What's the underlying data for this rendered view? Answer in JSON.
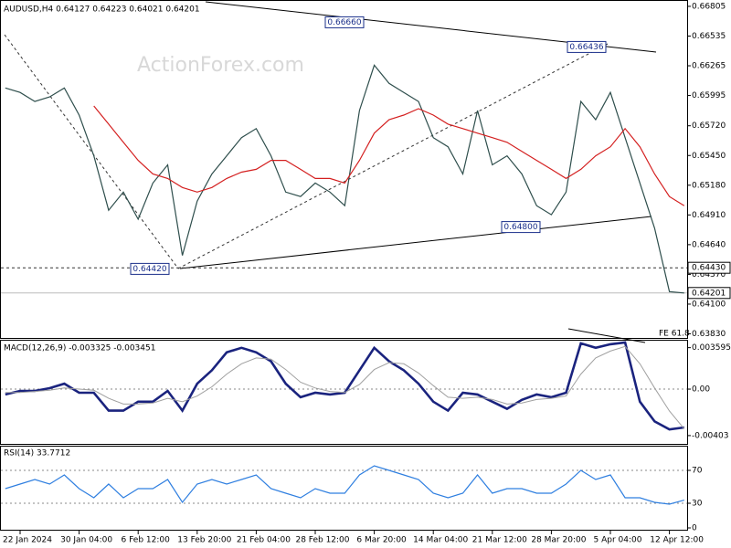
{
  "chart_data": [
    {
      "type": "line",
      "title": "AUDUSD,H4 0.64127 0.64223 0.64021 0.64201",
      "watermark": "ActionForex.com",
      "fib_label": "FE 61.8",
      "ylim": [
        0.63801,
        0.66846
      ],
      "yticks": [
        0.66805,
        0.66535,
        0.66265,
        0.65995,
        {
          "value": 0.6572,
          "label": "0.65720"
        },
        {
          "value": 0.6545,
          "label": "0.65450"
        },
        {
          "value": 0.6518,
          "label": "0.65180"
        },
        {
          "value": 0.6491,
          "label": "0.64910"
        },
        {
          "value": 0.6464,
          "label": "0.64640"
        },
        {
          "value": 0.6437,
          "label": "0.64370"
        },
        {
          "value": 0.641,
          "label": "0.64100"
        },
        {
          "value": 0.6383,
          "label": "0.63830"
        }
      ],
      "levels": [
        {
          "value": 0.6443,
          "label": "0.64430"
        },
        {
          "value": 0.64201,
          "label": "0.64201"
        }
      ],
      "annotations": [
        {
          "value": 0.6666,
          "label": "0.66660"
        },
        {
          "value": 0.66436,
          "label": "0.66436"
        },
        {
          "value": 0.648,
          "label": "0.64800"
        },
        {
          "value": 0.6442,
          "label": "0.64420"
        }
      ],
      "series": [
        {
          "color": "#2e4e4c",
          "values": [
            0.66064,
            0.66023,
            0.65941,
            0.65982,
            0.66064,
            0.65817,
            0.65447,
            0.64953,
            0.65118,
            0.64871,
            0.652,
            0.65365,
            0.64542,
            0.65036,
            0.65282,
            0.65447,
            0.65612,
            0.65694,
            0.65447,
            0.65118,
            0.65077,
            0.652,
            0.65118,
            0.64994,
            0.65859,
            0.6627,
            0.66105,
            0.66023,
            0.65941,
            0.65612,
            0.65529,
            0.65282,
            0.65859,
            0.65365,
            0.65447,
            0.65282,
            0.64994,
            0.64912,
            0.65118,
            0.65941,
            0.65776,
            0.66023,
            0.65612,
            0.652,
            0.64789,
            0.64213,
            0.64201
          ]
        },
        {
          "color": "#d42020",
          "values": [
            null,
            null,
            null,
            null,
            null,
            null,
            0.659,
            0.65735,
            0.6557,
            0.65406,
            0.65282,
            0.65241,
            0.65159,
            0.65118,
            0.65159,
            0.65241,
            0.65299,
            0.65324,
            0.65406,
            0.65406,
            0.65324,
            0.65241,
            0.65241,
            0.652,
            0.65406,
            0.65653,
            0.65776,
            0.65817,
            0.65875,
            0.65817,
            0.65735,
            0.65694,
            0.65653,
            0.65612,
            0.6557,
            0.65488,
            0.65406,
            0.65324,
            0.65241,
            0.65324,
            0.65447,
            0.65529,
            0.65694,
            0.65529,
            0.65282,
            0.65077,
            0.64994
          ]
        }
      ]
    },
    {
      "type": "line",
      "title": "MACD(12,26,9) -0.003325 -0.003451",
      "ylim": [
        -0.00467,
        0.0042
      ],
      "yticks": [
        0.003595,
        {
          "value": 0,
          "label": "0.00"
        },
        -0.00403
      ],
      "reference_lines": [
        0
      ],
      "series": [
        {
          "color": "#1a237e",
          "values": [
            -0.000467,
            -0.000156,
            -0.000156,
            7.8e-05,
            0.000467,
            -0.000311,
            -0.000311,
            -0.001867,
            -0.001867,
            -0.001089,
            -0.001089,
            -0.000156,
            -0.001867,
            0.000467,
            0.001634,
            0.00319,
            0.003579,
            0.00319,
            0.002412,
            0.000467,
            -0.0007,
            -0.000311,
            -0.000467,
            -0.000311,
            0.001634,
            0.003579,
            0.002412,
            0.001634,
            0.000467,
            -0.001089,
            -0.001867,
            -0.000311,
            -0.000467,
            -0.001089,
            -0.001712,
            -0.000934,
            -0.000467,
            -0.0007,
            -0.000311,
            0.003968,
            0.003579,
            0.00389,
            0.004046,
            -0.001089,
            -0.002801,
            -0.003501,
            -0.003325
          ]
        },
        {
          "color": "#a0a0a0",
          "values": [
            -0.0003,
            -0.0003,
            -0.0002,
            -0.0001,
            0.0001,
            0.0,
            -0.0001,
            -0.0008,
            -0.0013,
            -0.0013,
            -0.0012,
            -0.0008,
            -0.0011,
            -0.0006,
            0.0002,
            0.0013,
            0.0022,
            0.0027,
            0.0026,
            0.0017,
            0.0006,
            0.0001,
            -0.0002,
            -0.0003,
            0.0004,
            0.0017,
            0.0023,
            0.0022,
            0.0014,
            0.0003,
            -0.0007,
            -0.0008,
            -0.0007,
            -0.0009,
            -0.0013,
            -0.0012,
            -0.0009,
            -0.0008,
            -0.0006,
            0.0013,
            0.0027,
            0.0033,
            0.0037,
            0.0022,
            0.0001,
            -0.0019,
            -0.003451
          ]
        }
      ]
    },
    {
      "type": "line",
      "title": "RSI(14) 33.7712",
      "categories": [
        null,
        "22 Jan 2024",
        null,
        null,
        null,
        "30 Jan 04:00",
        null,
        null,
        null,
        "6 Feb 12:00",
        null,
        null,
        null,
        "13 Feb 20:00",
        null,
        null,
        null,
        "21 Feb 04:00",
        null,
        null,
        null,
        "28 Feb 12:00",
        null,
        null,
        null,
        "6 Mar 20:00",
        null,
        null,
        null,
        "14 Mar 04:00",
        null,
        null,
        null,
        "21 Mar 12:00",
        null,
        null,
        null,
        "28 Mar 20:00",
        null,
        null,
        null,
        "5 Apr 04:00",
        null,
        null,
        null,
        "12 Apr 12:00",
        null
      ],
      "ylim": [
        0,
        100
      ],
      "yticks": [
        70,
        30,
        0
      ],
      "reference_lines": [
        70,
        30
      ],
      "series": [
        {
          "color": "#2f7fe0",
          "values": [
            47.8,
            53.3,
            58.9,
            53.3,
            64.4,
            47.8,
            36.7,
            53.3,
            36.7,
            47.8,
            47.8,
            58.9,
            31.1,
            53.3,
            58.9,
            53.3,
            58.9,
            64.4,
            47.8,
            42.2,
            36.7,
            47.8,
            42.2,
            42.2,
            64.4,
            75.6,
            70,
            64.4,
            58.9,
            42.2,
            36.7,
            42.2,
            64.4,
            42.2,
            47.8,
            47.8,
            42.2,
            42.2,
            53.3,
            70,
            58.9,
            64.4,
            36.7,
            36.7,
            31.1,
            28.9,
            33.8
          ]
        }
      ]
    }
  ]
}
